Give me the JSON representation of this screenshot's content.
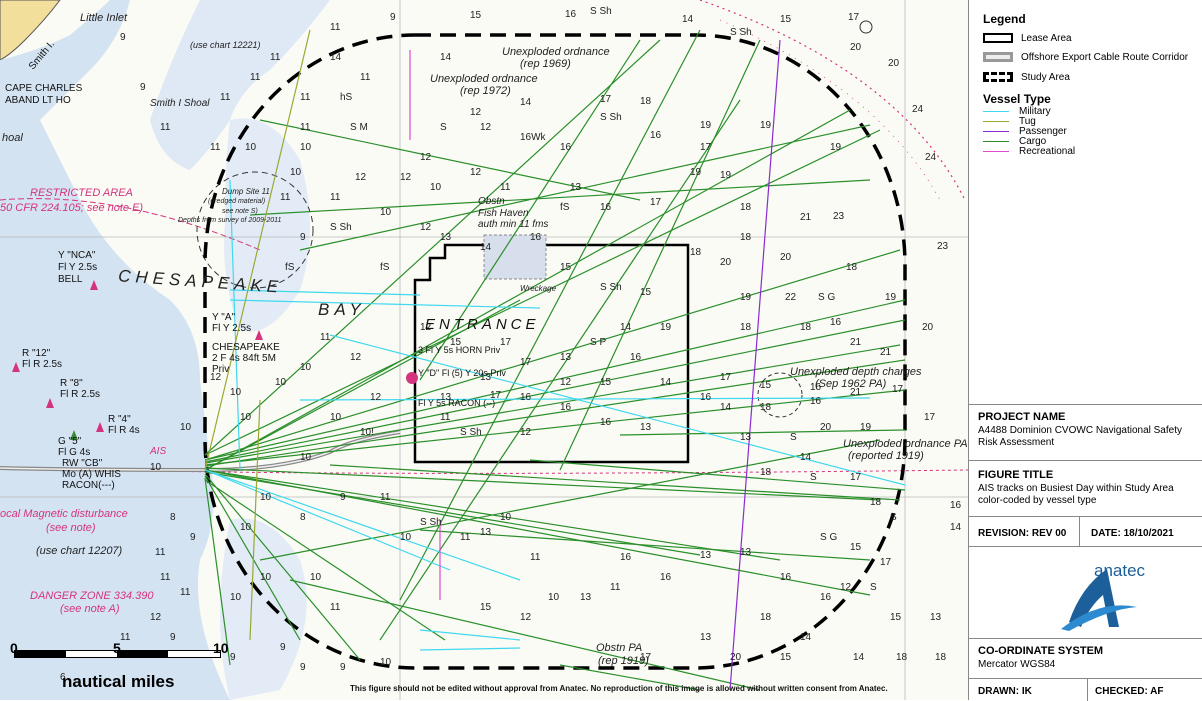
{
  "map": {
    "labels": {
      "little_inlet": "Little Inlet",
      "smith_i": "Smith I.",
      "use_chart_12221": "(use chart 12221)",
      "cape_charles": "CAPE CHARLES",
      "aband_lt_ho": "ABAND LT HO",
      "smith_i_shoal": "Smith I Shoal",
      "shoal": "hoal",
      "restricted_area": "RESTRICTED AREA",
      "cfr": "50 CFR 224.105; see note E)",
      "dump_site": "Dump Site 11",
      "dredged": "(dredged material)",
      "see_note_s": "see note S)",
      "depths": "Depths from survey of 2009-2011",
      "ync": "Y \"NCA\"",
      "fl_y_25": "Fl Y 2.5s",
      "bell": "BELL",
      "chesapeake": "CHESAPEAKE",
      "bay": "BAY",
      "y_a": "Y \"A\"",
      "fl_y_25_b": "Fl Y 2.5s",
      "chesapeake2": "CHESAPEAKE",
      "light_char": "2 F 4s 84ft 5M",
      "priv": "Priv",
      "r12": "R \"12\"",
      "flr25": "Fl R 2.5s",
      "r8": "R \"8\"",
      "flr25b": "Fl R 2.5s",
      "r4": "R \"4\"",
      "flr4": "Fl R 4s",
      "g5": "G \"5\"",
      "flg4": "Fl G 4s",
      "rwcb": "RW \"CB\"",
      "mo_a": "Mo (A) WHIS",
      "racon": "RACON(---)",
      "ais": "AIS",
      "local_mag": "ocal Magnetic disturbance",
      "see_note": "(see note)",
      "use_chart_12207": "(use chart 12207)",
      "danger_zone": "DANGER ZONE 334.390",
      "see_note_a": "(see note A)",
      "unexploded1": "Unexploded ordnance",
      "rep1969": "(rep 1969)",
      "unexploded2": "Unexploded ordnance",
      "rep1972": "(rep 1972)",
      "entrance": "ENTRANCE",
      "fish_haven": "Fish Haven",
      "auth_min": "auth min 11 fms",
      "obstn": "Obstn",
      "wreckage": "Wreckage",
      "horn": "3 Fl Y 5s HORN Priv",
      "y_fl5": "Y \"D\" Fl (5) Y 20s Priv",
      "racon2": "Fl Y 5s RACON (--)",
      "unexploded_depth": "Unexploded depth charges",
      "sep1962": "(Sep 1962 PA)",
      "unexploded3": "Unexploded ordnance PA",
      "reported1919": "(reported 1919)",
      "obstn_pa": "Obstn PA",
      "rep1919": "(rep 1919)"
    },
    "scale": {
      "zero": "0",
      "five": "5",
      "ten": "10",
      "unit": "nautical miles"
    },
    "disclaimer": "This figure should not be edited without approval from Anatec. No reproduction of this image is allowed without written consent from Anatec."
  },
  "legend": {
    "title": "Legend",
    "lease_area": "Lease Area",
    "cable_route": "Offshore Export Cable Route Corridor",
    "study_area": "Study Area",
    "vessel_type_title": "Vessel Type",
    "vessel_types": [
      {
        "label": "Military",
        "color": "#3fd8ee"
      },
      {
        "label": "Tug",
        "color": "#9aa832"
      },
      {
        "label": "Passenger",
        "color": "#8a2ad0"
      },
      {
        "label": "Cargo",
        "color": "#2a8f2a"
      },
      {
        "label": "Recreational",
        "color": "#e04ad0"
      }
    ]
  },
  "title_block": {
    "project_name_heading": "PROJECT NAME",
    "project_name": "A4488 Dominion CVOWC Navigational Safety Risk Assessment",
    "figure_title_heading": "FIGURE TITLE",
    "figure_title": "AIS tracks on Busiest Day within Study Area color-coded by vessel type",
    "revision": "REVISION:  REV 00",
    "date": "DATE:  18/10/2021",
    "logo_text": "anatec",
    "coord_heading": "CO-ORDINATE SYSTEM",
    "coord": "Mercator WGS84",
    "drawn": "DRAWN: IK",
    "checked": "CHECKED: AF"
  }
}
